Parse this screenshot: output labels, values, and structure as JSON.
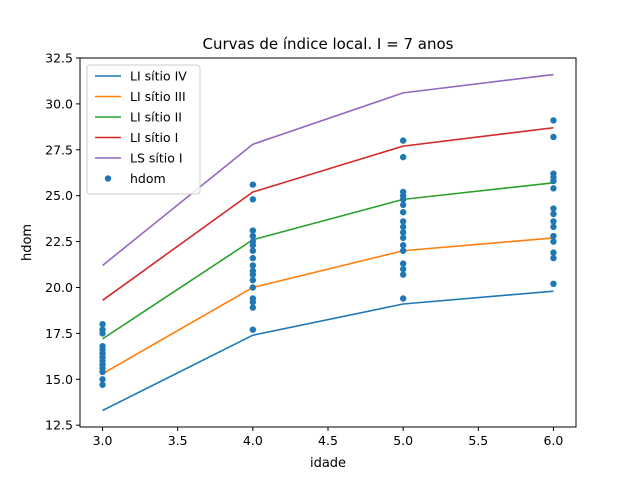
{
  "chart_data": {
    "type": "line",
    "title": "Curvas de índice local. I = 7 anos",
    "xlabel": "idade",
    "ylabel": "hdom",
    "xlim": [
      2.85,
      6.15
    ],
    "ylim": [
      12.4,
      32.5
    ],
    "xticks": [
      3.0,
      3.5,
      4.0,
      4.5,
      5.0,
      5.5,
      6.0
    ],
    "xtick_labels": [
      "3.0",
      "3.5",
      "4.0",
      "4.5",
      "5.0",
      "5.5",
      "6.0"
    ],
    "yticks": [
      12.5,
      15.0,
      17.5,
      20.0,
      22.5,
      25.0,
      27.5,
      30.0,
      32.5
    ],
    "ytick_labels": [
      "12.5",
      "15.0",
      "17.5",
      "20.0",
      "22.5",
      "25.0",
      "27.5",
      "30.0",
      "32.5"
    ],
    "legend_position": "top-left",
    "grid": false,
    "x": [
      3,
      4,
      5,
      6
    ],
    "series": [
      {
        "name": "LI sítio IV",
        "color": "#1f77b4",
        "values": [
          13.3,
          17.4,
          19.1,
          19.8
        ]
      },
      {
        "name": "LI sítio III",
        "color": "#ff7f0e",
        "values": [
          15.3,
          20.0,
          22.0,
          22.7
        ]
      },
      {
        "name": "LI sítio II",
        "color": "#2ca02c",
        "values": [
          17.2,
          22.6,
          24.8,
          25.7
        ]
      },
      {
        "name": "LI sítio I",
        "color": "#d62728",
        "values": [
          19.3,
          25.2,
          27.7,
          28.7
        ]
      },
      {
        "name": "LS sítio I",
        "color": "#9467bd",
        "values": [
          21.2,
          27.8,
          30.6,
          31.6
        ]
      }
    ],
    "scatter": {
      "name": "hdom",
      "color": "#1f77b4",
      "points": [
        [
          3,
          14.7
        ],
        [
          3,
          15.0
        ],
        [
          3,
          15.4
        ],
        [
          3,
          15.6
        ],
        [
          3,
          15.8
        ],
        [
          3,
          16.0
        ],
        [
          3,
          16.2
        ],
        [
          3,
          16.4
        ],
        [
          3,
          16.6
        ],
        [
          3,
          16.8
        ],
        [
          3,
          17.5
        ],
        [
          3,
          17.7
        ],
        [
          3,
          18.0
        ],
        [
          4,
          17.7
        ],
        [
          4,
          18.9
        ],
        [
          4,
          19.2
        ],
        [
          4,
          19.4
        ],
        [
          4,
          20.0
        ],
        [
          4,
          20.4
        ],
        [
          4,
          20.7
        ],
        [
          4,
          20.9
        ],
        [
          4,
          21.2
        ],
        [
          4,
          21.6
        ],
        [
          4,
          22.0
        ],
        [
          4,
          22.3
        ],
        [
          4,
          22.5
        ],
        [
          4,
          22.8
        ],
        [
          4,
          23.1
        ],
        [
          4,
          24.8
        ],
        [
          4,
          25.6
        ],
        [
          5,
          19.4
        ],
        [
          5,
          20.7
        ],
        [
          5,
          21.0
        ],
        [
          5,
          21.3
        ],
        [
          5,
          22.0
        ],
        [
          5,
          22.3
        ],
        [
          5,
          22.7
        ],
        [
          5,
          23.0
        ],
        [
          5,
          23.3
        ],
        [
          5,
          23.6
        ],
        [
          5,
          24.1
        ],
        [
          5,
          24.5
        ],
        [
          5,
          24.8
        ],
        [
          5,
          25.0
        ],
        [
          5,
          25.2
        ],
        [
          5,
          27.1
        ],
        [
          5,
          28.0
        ],
        [
          6,
          20.2
        ],
        [
          6,
          21.6
        ],
        [
          6,
          21.9
        ],
        [
          6,
          22.5
        ],
        [
          6,
          22.8
        ],
        [
          6,
          23.3
        ],
        [
          6,
          23.6
        ],
        [
          6,
          24.0
        ],
        [
          6,
          24.3
        ],
        [
          6,
          25.4
        ],
        [
          6,
          25.8
        ],
        [
          6,
          26.0
        ],
        [
          6,
          26.2
        ],
        [
          6,
          28.2
        ],
        [
          6,
          29.1
        ]
      ]
    }
  }
}
